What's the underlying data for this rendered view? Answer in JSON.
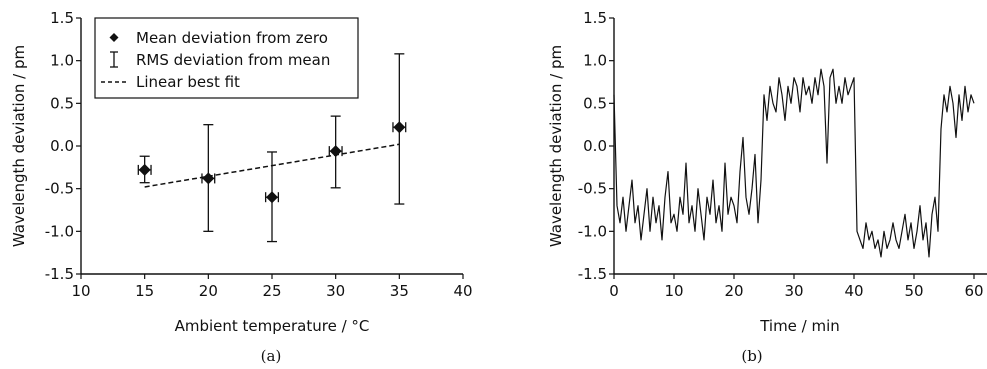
{
  "chart_data": [
    {
      "type": "scatter",
      "caption": "(a)",
      "xlabel": "Ambient temperature / °C",
      "ylabel": "Wavelength deviation / pm",
      "xlim": [
        10,
        40
      ],
      "ylim": [
        -1.5,
        1.5
      ],
      "xticks": [
        "10",
        "15",
        "20",
        "25",
        "30",
        "35",
        "40"
      ],
      "yticks": [
        "1.5",
        "1.0",
        "0.5",
        "0.0",
        "-0.5",
        "-1.0",
        "-1.5"
      ],
      "legend": {
        "position": "top-left",
        "entries": [
          "Mean deviation from zero",
          "RMS deviation from mean",
          "Linear best fit"
        ]
      },
      "series": [
        {
          "name": "Mean deviation from zero",
          "x": [
            15,
            20,
            25,
            30,
            35
          ],
          "y": [
            -0.28,
            -0.38,
            -0.6,
            -0.06,
            0.22
          ],
          "x_err": [
            0.5,
            0.5,
            0.5,
            0.5,
            0.5
          ],
          "y_lower": [
            -0.43,
            -1.0,
            -1.12,
            -0.49,
            -0.68
          ],
          "y_upper": [
            -0.12,
            0.25,
            -0.07,
            0.35,
            1.08
          ]
        },
        {
          "name": "Linear best fit",
          "line_style": "dashed",
          "x": [
            15,
            35
          ],
          "y": [
            -0.48,
            0.02
          ]
        }
      ]
    },
    {
      "type": "line",
      "caption": "(b)",
      "xlabel": "Time / min",
      "ylabel": "Wavelength deviation / pm",
      "xlim": [
        0,
        60
      ],
      "ylim": [
        -1.5,
        1.5
      ],
      "xticks": [
        "0",
        "10",
        "20",
        "30",
        "40",
        "50",
        "60"
      ],
      "yticks": [
        "1.5",
        "1.0",
        "0.5",
        "0.0",
        "-0.5",
        "-1.0",
        "-1.5"
      ],
      "series": [
        {
          "x": [
            0,
            0.5,
            1,
            1.5,
            2,
            2.5,
            3,
            3.5,
            4,
            4.5,
            5,
            5.5,
            6,
            6.5,
            7,
            7.5,
            8,
            8.5,
            9,
            9.5,
            10,
            10.5,
            11,
            11.5,
            12,
            12.5,
            13,
            13.5,
            14,
            14.5,
            15,
            15.5,
            16,
            16.5,
            17,
            17.5,
            18,
            18.5,
            19,
            19.5,
            20,
            20.5,
            21,
            21.5,
            22,
            22.5,
            23,
            23.5,
            24,
            24.5,
            25,
            25.5,
            26,
            26.5,
            27,
            27.5,
            28,
            28.5,
            29,
            29.5,
            30,
            30.5,
            31,
            31.5,
            32,
            32.5,
            33,
            33.5,
            34,
            34.5,
            35,
            35.5,
            36,
            36.5,
            37,
            37.5,
            38,
            38.5,
            39,
            39.5,
            40,
            40.5,
            41,
            41.5,
            42,
            42.5,
            43,
            43.5,
            44,
            44.5,
            45,
            45.5,
            46,
            46.5,
            47,
            47.5,
            48,
            48.5,
            49,
            49.5,
            50,
            50.5,
            51,
            51.5,
            52,
            52.5,
            53,
            53.5,
            54,
            54.5,
            55,
            55.5,
            56,
            56.5,
            57,
            57.5,
            58,
            58.5,
            59,
            59.5,
            60
          ],
          "y": [
            0.6,
            -0.7,
            -0.9,
            -0.6,
            -1.0,
            -0.7,
            -0.4,
            -0.9,
            -0.7,
            -1.1,
            -0.8,
            -0.5,
            -1.0,
            -0.6,
            -0.9,
            -0.7,
            -1.1,
            -0.6,
            -0.3,
            -0.9,
            -0.8,
            -1.0,
            -0.6,
            -0.8,
            -0.2,
            -0.9,
            -0.7,
            -1.0,
            -0.5,
            -0.8,
            -1.1,
            -0.6,
            -0.8,
            -0.4,
            -0.9,
            -0.7,
            -1.0,
            -0.2,
            -0.8,
            -0.6,
            -0.7,
            -0.9,
            -0.3,
            0.1,
            -0.6,
            -0.8,
            -0.5,
            -0.1,
            -0.9,
            -0.4,
            0.6,
            0.3,
            0.7,
            0.5,
            0.4,
            0.8,
            0.6,
            0.3,
            0.7,
            0.5,
            0.8,
            0.7,
            0.4,
            0.8,
            0.6,
            0.7,
            0.5,
            0.8,
            0.6,
            0.9,
            0.7,
            -0.2,
            0.8,
            0.9,
            0.5,
            0.7,
            0.5,
            0.8,
            0.6,
            0.7,
            0.8,
            -1.0,
            -1.1,
            -1.2,
            -0.9,
            -1.1,
            -1.0,
            -1.2,
            -1.1,
            -1.3,
            -1.0,
            -1.2,
            -1.1,
            -0.9,
            -1.1,
            -1.2,
            -1.0,
            -0.8,
            -1.1,
            -0.9,
            -1.2,
            -1.0,
            -0.7,
            -1.1,
            -0.9,
            -1.3,
            -0.8,
            -0.6,
            -1.0,
            0.2,
            0.6,
            0.4,
            0.7,
            0.5,
            0.1,
            0.6,
            0.3,
            0.7,
            0.4,
            0.6,
            0.5
          ]
        }
      ]
    }
  ]
}
